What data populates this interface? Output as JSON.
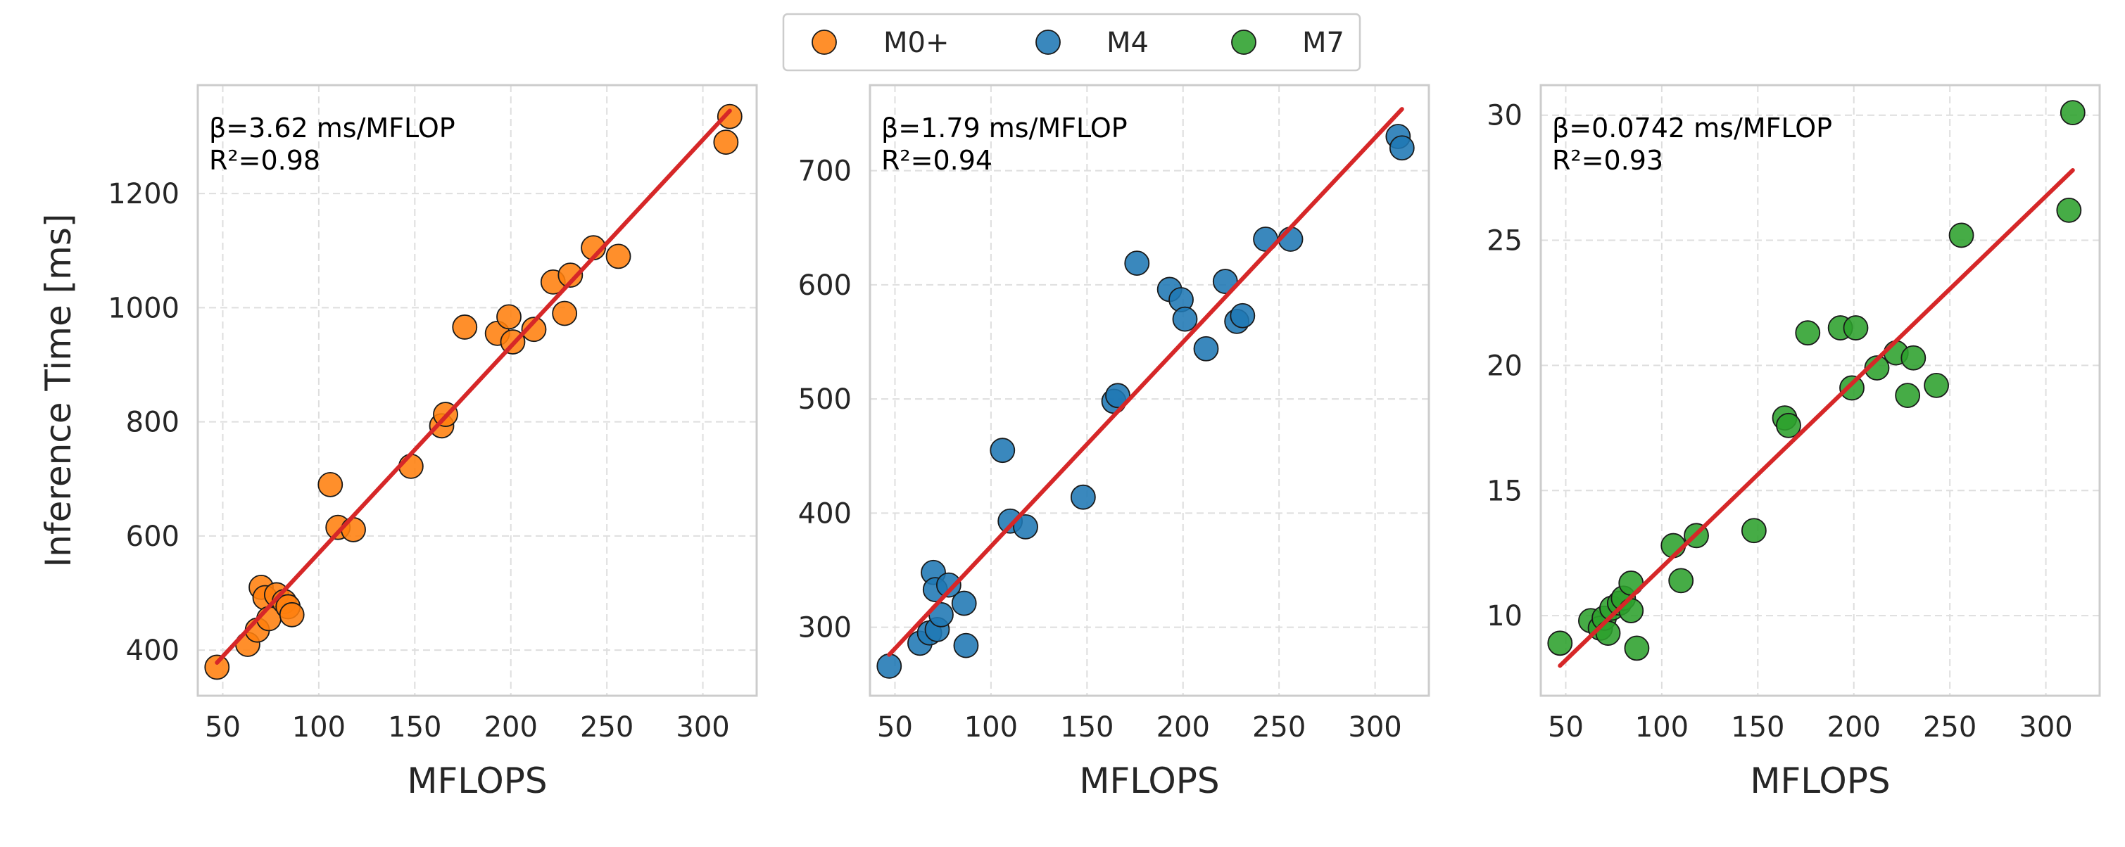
{
  "legend": {
    "entries": [
      {
        "label": "M0+",
        "color": "#ff7f0e"
      },
      {
        "label": "M4",
        "color": "#1f77b4"
      },
      {
        "label": "M7",
        "color": "#2ca02c"
      }
    ]
  },
  "fit_color": "#d62728",
  "chart_data": [
    {
      "type": "scatter",
      "series_name": "M0+",
      "color": "#ff7f0e",
      "xlabel": "MFLOPS",
      "ylabel": "Inference Time [ms]",
      "xlim": [
        37,
        328
      ],
      "ylim": [
        320,
        1390
      ],
      "xticks": [
        50,
        100,
        150,
        200,
        250,
        300
      ],
      "yticks": [
        400,
        600,
        800,
        1000,
        1200
      ],
      "grid": true,
      "annotation_beta": "β=3.62 ms/MFLOP",
      "annotation_r2": "R²=0.98",
      "fit": {
        "x": [
          47,
          314
        ],
        "y": [
          378,
          1345
        ]
      },
      "points": [
        {
          "x": 47,
          "y": 370
        },
        {
          "x": 63,
          "y": 410
        },
        {
          "x": 68,
          "y": 435
        },
        {
          "x": 70,
          "y": 510
        },
        {
          "x": 72,
          "y": 492
        },
        {
          "x": 74,
          "y": 455
        },
        {
          "x": 78,
          "y": 497
        },
        {
          "x": 82,
          "y": 485
        },
        {
          "x": 84,
          "y": 476
        },
        {
          "x": 86,
          "y": 462
        },
        {
          "x": 106,
          "y": 690
        },
        {
          "x": 110,
          "y": 615
        },
        {
          "x": 118,
          "y": 611
        },
        {
          "x": 148,
          "y": 722
        },
        {
          "x": 164,
          "y": 793
        },
        {
          "x": 166,
          "y": 813
        },
        {
          "x": 176,
          "y": 966
        },
        {
          "x": 193,
          "y": 955
        },
        {
          "x": 199,
          "y": 984
        },
        {
          "x": 201,
          "y": 940
        },
        {
          "x": 212,
          "y": 962
        },
        {
          "x": 222,
          "y": 1045
        },
        {
          "x": 228,
          "y": 990
        },
        {
          "x": 231,
          "y": 1057
        },
        {
          "x": 243,
          "y": 1105
        },
        {
          "x": 256,
          "y": 1090
        },
        {
          "x": 312,
          "y": 1290
        },
        {
          "x": 314,
          "y": 1335
        }
      ]
    },
    {
      "type": "scatter",
      "series_name": "M4",
      "color": "#1f77b4",
      "xlabel": "MFLOPS",
      "ylabel": "",
      "xlim": [
        37,
        328
      ],
      "ylim": [
        240,
        775
      ],
      "xticks": [
        50,
        100,
        150,
        200,
        250,
        300
      ],
      "yticks": [
        300,
        400,
        500,
        600,
        700
      ],
      "grid": true,
      "annotation_beta": "β=1.79 ms/MFLOP",
      "annotation_r2": "R²=0.94",
      "fit": {
        "x": [
          47,
          314
        ],
        "y": [
          276,
          754
        ]
      },
      "points": [
        {
          "x": 47,
          "y": 266
        },
        {
          "x": 63,
          "y": 286
        },
        {
          "x": 68,
          "y": 295
        },
        {
          "x": 70,
          "y": 348
        },
        {
          "x": 71,
          "y": 333
        },
        {
          "x": 72,
          "y": 298
        },
        {
          "x": 74,
          "y": 311
        },
        {
          "x": 78,
          "y": 337
        },
        {
          "x": 86,
          "y": 321
        },
        {
          "x": 87,
          "y": 284
        },
        {
          "x": 106,
          "y": 455
        },
        {
          "x": 110,
          "y": 393
        },
        {
          "x": 118,
          "y": 388
        },
        {
          "x": 148,
          "y": 414
        },
        {
          "x": 164,
          "y": 498
        },
        {
          "x": 166,
          "y": 503
        },
        {
          "x": 176,
          "y": 619
        },
        {
          "x": 193,
          "y": 596
        },
        {
          "x": 199,
          "y": 587
        },
        {
          "x": 201,
          "y": 570
        },
        {
          "x": 212,
          "y": 544
        },
        {
          "x": 222,
          "y": 603
        },
        {
          "x": 228,
          "y": 568
        },
        {
          "x": 231,
          "y": 573
        },
        {
          "x": 243,
          "y": 640
        },
        {
          "x": 256,
          "y": 640
        },
        {
          "x": 312,
          "y": 730
        },
        {
          "x": 314,
          "y": 720
        }
      ]
    },
    {
      "type": "scatter",
      "series_name": "M7",
      "color": "#2ca02c",
      "xlabel": "MFLOPS",
      "ylabel": "",
      "xlim": [
        37,
        328
      ],
      "ylim": [
        6.8,
        31.2
      ],
      "xticks": [
        50,
        100,
        150,
        200,
        250,
        300
      ],
      "yticks": [
        10,
        15,
        20,
        25,
        30
      ],
      "grid": true,
      "annotation_beta": "β=0.0742 ms/MFLOP",
      "annotation_r2": "R²=0.93",
      "fit": {
        "x": [
          47,
          314
        ],
        "y": [
          8.0,
          27.8
        ]
      },
      "points": [
        {
          "x": 47,
          "y": 8.9
        },
        {
          "x": 63,
          "y": 9.8
        },
        {
          "x": 68,
          "y": 9.5
        },
        {
          "x": 70,
          "y": 9.9
        },
        {
          "x": 72,
          "y": 9.3
        },
        {
          "x": 74,
          "y": 10.3
        },
        {
          "x": 78,
          "y": 10.5
        },
        {
          "x": 80,
          "y": 10.7
        },
        {
          "x": 84,
          "y": 11.3
        },
        {
          "x": 84,
          "y": 10.2
        },
        {
          "x": 87,
          "y": 8.7
        },
        {
          "x": 106,
          "y": 12.8
        },
        {
          "x": 110,
          "y": 11.4
        },
        {
          "x": 118,
          "y": 13.2
        },
        {
          "x": 148,
          "y": 13.4
        },
        {
          "x": 164,
          "y": 17.9
        },
        {
          "x": 166,
          "y": 17.6
        },
        {
          "x": 176,
          "y": 21.3
        },
        {
          "x": 193,
          "y": 21.5
        },
        {
          "x": 199,
          "y": 19.1
        },
        {
          "x": 201,
          "y": 21.5
        },
        {
          "x": 212,
          "y": 19.9
        },
        {
          "x": 222,
          "y": 20.5
        },
        {
          "x": 228,
          "y": 18.8
        },
        {
          "x": 231,
          "y": 20.3
        },
        {
          "x": 243,
          "y": 19.2
        },
        {
          "x": 256,
          "y": 25.2
        },
        {
          "x": 312,
          "y": 26.2
        },
        {
          "x": 314,
          "y": 30.1
        }
      ]
    }
  ]
}
